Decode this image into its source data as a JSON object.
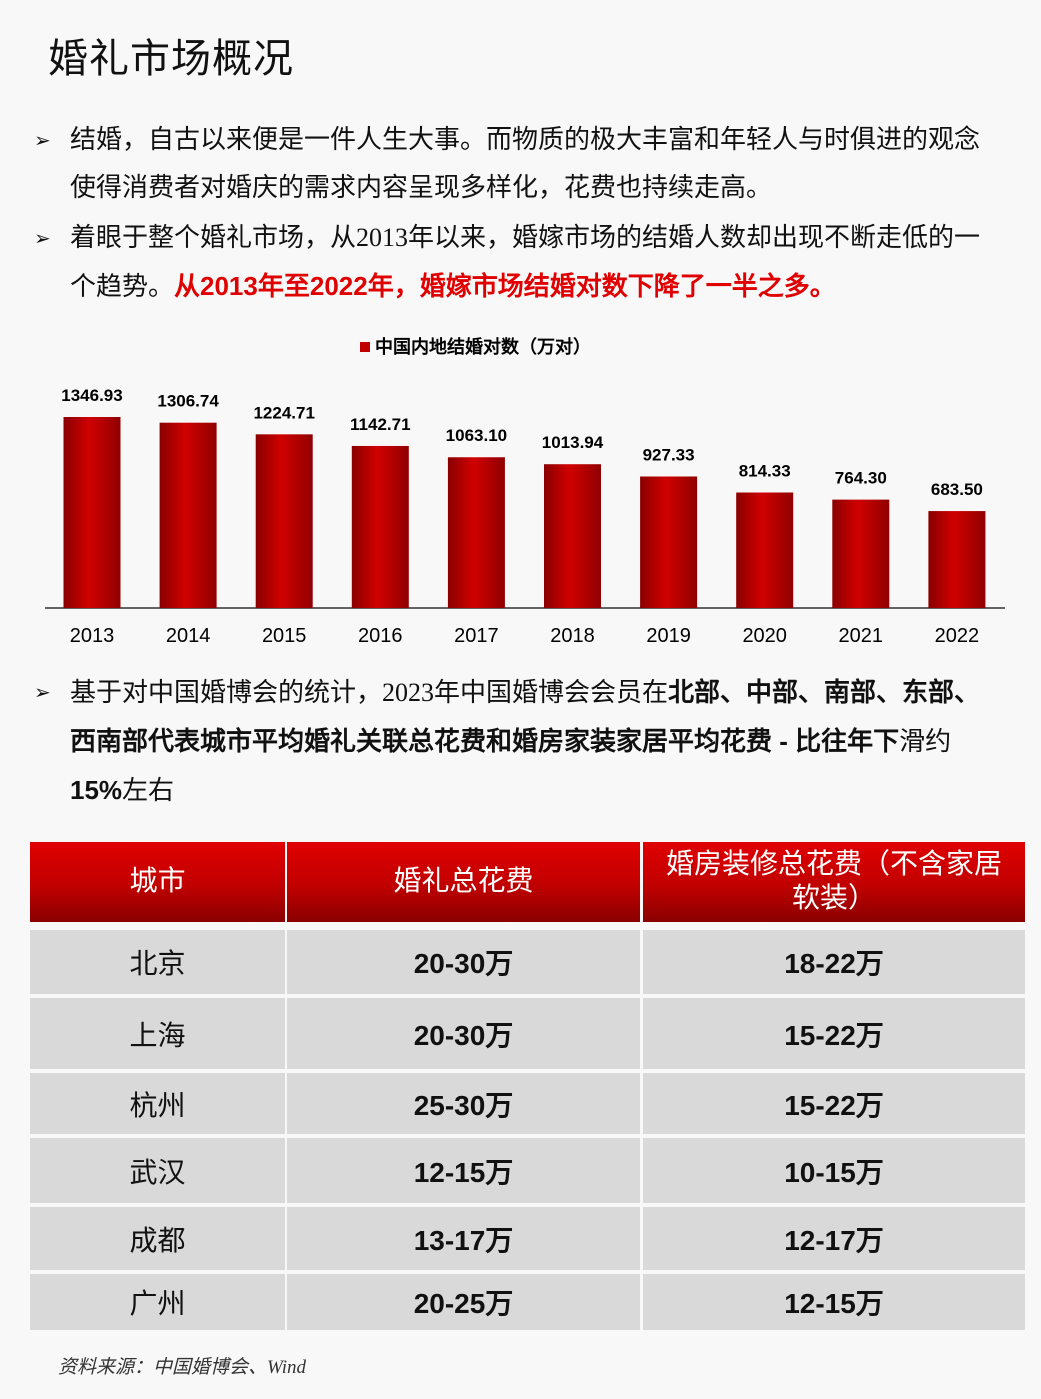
{
  "header": {
    "title": "婚礼市场概况"
  },
  "bullets": [
    [
      {
        "text": "结婚，自古以来便是一件人生大事。而物质的极大丰富和年轻人与时俱进的观念使得消费者对婚庆的需求内容呈现多样化，花费也持续走高。",
        "style": "normal"
      }
    ],
    [
      {
        "text": "着眼于整个婚礼市场，从2013年以来，婚嫁市场的结婚人数却出现不断走低的一个趋势。",
        "style": "normal"
      },
      {
        "text": "从2013年至2022年，婚嫁市场结婚对数下降了一半之多。",
        "style": "red-bold"
      }
    ],
    [
      {
        "text": "基于对中国婚博会的统计，2023年中国婚博会会员在",
        "style": "normal"
      },
      {
        "text": "北部、中部、南部、东部、西南部代表城市平均婚礼关联总花费和婚房家装家居平均花费 - 比往年下",
        "style": "bold"
      },
      {
        "text": "滑约",
        "style": "normal"
      },
      {
        "text": "15%",
        "style": "bold"
      },
      {
        "text": "左右",
        "style": "normal"
      }
    ]
  ],
  "chart_data": {
    "type": "bar",
    "series": [
      {
        "name": "中国内地结婚对数（万对）",
        "color": "#c00000",
        "values": [
          1346.93,
          1306.74,
          1224.71,
          1142.71,
          1063.1,
          1013.94,
          927.33,
          814.33,
          764.3,
          683.5
        ],
        "value_labels": [
          "1346.93",
          "1306.74",
          "1224.71",
          "1142.71",
          "1063.10",
          "1013.94",
          "927.33",
          "814.33",
          "764.30",
          "683.50"
        ]
      }
    ],
    "categories": [
      "2013",
      "2014",
      "2015",
      "2016",
      "2017",
      "2018",
      "2019",
      "2020",
      "2021",
      "2022"
    ]
  },
  "table": {
    "header": [
      "城市",
      "婚礼总花费",
      "婚房装修总花费（不含家居软装）"
    ],
    "rows": [
      [
        "北京",
        "20-30万",
        "18-22万"
      ],
      [
        "上海",
        "20-30万",
        "15-22万"
      ],
      [
        "杭州",
        "25-30万",
        "15-22万"
      ],
      [
        "武汉",
        "12-15万",
        "10-15万"
      ],
      [
        "成都",
        "13-17万",
        "12-17万"
      ],
      [
        "广州",
        "20-25万",
        "12-15万"
      ]
    ]
  },
  "source": "资料来源：中国婚博会、Wind"
}
